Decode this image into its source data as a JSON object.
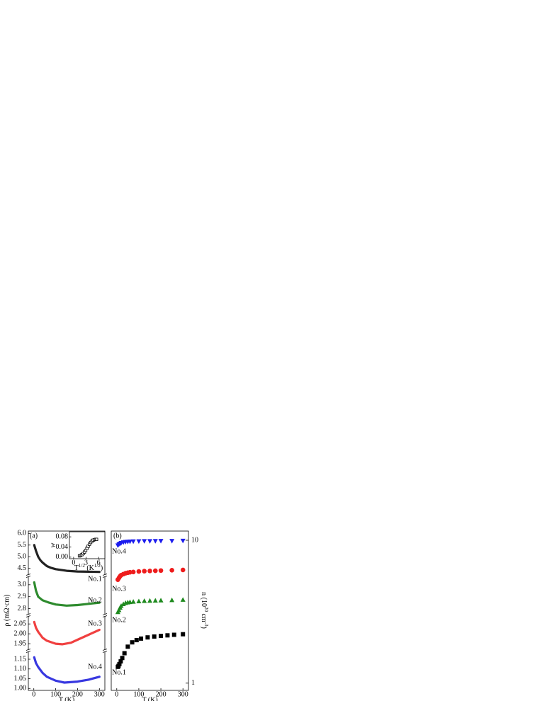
{
  "chart_data": [
    {
      "type": "line",
      "label": "(a)",
      "xlabel": "T (K)",
      "ylabel": "ρ (mΩ·cm)",
      "xlim": [
        -25,
        325
      ],
      "xticks": [
        0,
        100,
        200,
        300
      ],
      "series": [
        {
          "name": "No.1",
          "color": "#222222",
          "x": [
            2,
            10,
            20,
            30,
            40,
            60,
            80,
            100,
            150,
            200,
            250,
            300
          ],
          "values": [
            5.5,
            5.25,
            5.0,
            4.85,
            4.75,
            4.6,
            4.52,
            4.47,
            4.4,
            4.37,
            4.36,
            4.35
          ],
          "ylim": [
            4.22,
            6.1
          ],
          "yticks": [
            4.5,
            {
              "value": 5,
              "label": "5.0"
            },
            5.5,
            {
              "value": 6,
              "label": "6.0"
            }
          ]
        },
        {
          "name": "No.2",
          "color": "#2e8b2e",
          "x": [
            2,
            10,
            20,
            40,
            70,
            100,
            150,
            200,
            250,
            300
          ],
          "values": [
            3.02,
            2.95,
            2.9,
            2.87,
            2.85,
            2.835,
            2.825,
            2.83,
            2.84,
            2.85
          ],
          "ylim": [
            2.75,
            3.07
          ],
          "yticks": [
            2.8,
            2.9,
            {
              "value": 3,
              "label": "3.0"
            }
          ]
        },
        {
          "name": "No.3",
          "color": "#f04040",
          "x": [
            2,
            10,
            20,
            40,
            60,
            100,
            130,
            170,
            200,
            250,
            300
          ],
          "values": [
            2.06,
            2.03,
            2.01,
            1.98,
            1.965,
            1.95,
            1.947,
            1.955,
            1.97,
            1.995,
            2.02
          ],
          "ylim": [
            1.918,
            2.09
          ],
          "yticks": [
            1.95,
            {
              "value": 2,
              "label": "2.00"
            },
            2.05
          ]
        },
        {
          "name": "No.4",
          "color": "#3838e0",
          "x": [
            2,
            10,
            20,
            40,
            60,
            100,
            140,
            200,
            250,
            300
          ],
          "values": [
            1.16,
            1.13,
            1.11,
            1.08,
            1.06,
            1.04,
            1.03,
            1.035,
            1.045,
            1.06
          ],
          "ylim": [
            0.99,
            1.19
          ],
          "yticks": [
            {
              "value": 1,
              "label": "1.00"
            },
            1.05,
            {
              "value": 1.1,
              "label": "1.10"
            },
            1.15
          ]
        }
      ]
    },
    {
      "type": "scatter",
      "xlabel": [
        "T",
        "1/2",
        " (K",
        "1/2",
        ")"
      ],
      "ylabel": "w",
      "xlim": [
        -1,
        7.5
      ],
      "xticks": [
        0,
        3,
        6
      ],
      "ylim": [
        -0.006,
        0.1
      ],
      "yticks": [
        {
          "value": 0,
          "label": "0.00"
        },
        0.04,
        0.08
      ],
      "series": [
        {
          "marker": "square",
          "color": "#000000",
          "x": [
            1.4,
            1.7,
            2.0,
            2.3,
            2.6,
            2.9,
            3.2,
            3.5,
            3.8,
            4.1,
            4.4,
            4.7,
            5.0,
            5.3,
            5.5
          ],
          "values": [
            0.005,
            0.007,
            0.01,
            0.014,
            0.02,
            0.027,
            0.035,
            0.043,
            0.051,
            0.058,
            0.063,
            0.067,
            0.069,
            0.07,
            0.07
          ]
        }
      ]
    },
    {
      "type": "scatter",
      "label": "(b)",
      "xlabel": "T (K)",
      "ylabel": [
        "n",
        " (10",
        "20",
        " cm",
        "-3",
        ")"
      ],
      "xlim": [
        -25,
        325
      ],
      "xticks": [
        0,
        100,
        200,
        300
      ],
      "log_y": true,
      "ylim": [
        0.89,
        11.6
      ],
      "yticks": [
        1,
        10
      ],
      "series": [
        {
          "name": "No.1",
          "marker": "square",
          "color": "#000000",
          "x": [
            5,
            8,
            12,
            18,
            25,
            35,
            50,
            70,
            90,
            110,
            140,
            170,
            200,
            230,
            260,
            300
          ],
          "values": [
            1.3,
            1.32,
            1.36,
            1.42,
            1.5,
            1.62,
            1.8,
            1.93,
            2.0,
            2.05,
            2.09,
            2.12,
            2.14,
            2.16,
            2.18,
            2.2
          ]
        },
        {
          "name": "No.2",
          "marker": "triangle",
          "color": "#1f8a1f",
          "x": [
            5,
            10,
            15,
            20,
            30,
            40,
            50,
            60,
            75,
            100,
            125,
            150,
            175,
            200,
            250,
            300
          ],
          "values": [
            3.15,
            3.25,
            3.38,
            3.48,
            3.58,
            3.65,
            3.68,
            3.7,
            3.72,
            3.75,
            3.77,
            3.78,
            3.79,
            3.8,
            3.82,
            3.84
          ]
        },
        {
          "name": "No.3",
          "marker": "circle",
          "color": "#ee1c1c",
          "x": [
            5,
            10,
            15,
            20,
            30,
            40,
            50,
            60,
            75,
            100,
            125,
            150,
            175,
            200,
            250,
            300
          ],
          "values": [
            5.3,
            5.45,
            5.6,
            5.7,
            5.8,
            5.88,
            5.93,
            5.97,
            6.0,
            6.05,
            6.08,
            6.1,
            6.12,
            6.14,
            6.17,
            6.2
          ]
        },
        {
          "name": "No.4",
          "marker": "triangle-down",
          "color": "#1c1cee",
          "x": [
            5,
            10,
            15,
            20,
            30,
            40,
            50,
            60,
            75,
            100,
            125,
            150,
            175,
            200,
            250,
            300
          ],
          "values": [
            9.2,
            9.35,
            9.45,
            9.55,
            9.65,
            9.72,
            9.75,
            9.78,
            9.8,
            9.82,
            9.84,
            9.85,
            9.86,
            9.87,
            9.88,
            9.9
          ]
        }
      ]
    }
  ]
}
